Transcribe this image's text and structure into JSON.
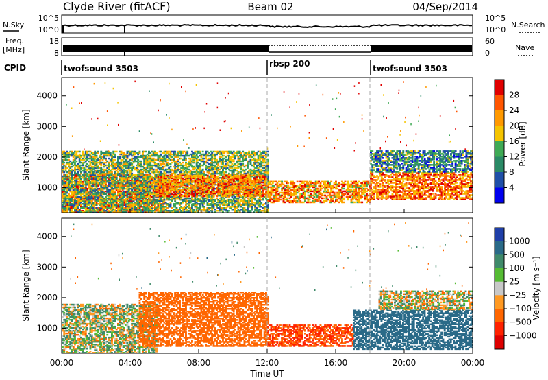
{
  "header": {
    "station": "Clyde River (fitACF)",
    "beam": "Beam 02",
    "date": "04/Sep/2014"
  },
  "top_panel": {
    "left_label": "N.Sky",
    "right_label": "N.Search",
    "left_ticks": [
      "10^5",
      "10^0"
    ],
    "right_ticks": [
      "10^5",
      "10^0"
    ]
  },
  "freq_panel": {
    "left_label_1": "Freq.",
    "left_label_2": "[MHz]",
    "right_label": "Nave",
    "left_ticks": [
      "18",
      "8"
    ],
    "right_ticks": [
      "60",
      "0"
    ]
  },
  "cpid": {
    "label": "CPID",
    "segments": [
      {
        "name": "twofsound 3503",
        "start_h": 0,
        "end_h": 12
      },
      {
        "name": "rbsp 200",
        "start_h": 12,
        "end_h": 18
      },
      {
        "name": "twofsound 3503",
        "start_h": 18,
        "end_h": 24
      }
    ]
  },
  "power_colorbar": {
    "label": "Power [dB]",
    "ticks": [
      "28",
      "24",
      "20",
      "16",
      "12",
      "8",
      "4"
    ],
    "colors": [
      "#e00000",
      "#ff5500",
      "#ff9900",
      "#f5c400",
      "#3faa55",
      "#2a8a66",
      "#1f4fa8",
      "#0000ee"
    ]
  },
  "velocity_colorbar": {
    "label": "Velocity [m s⁻¹]",
    "ticks": [
      "1000",
      "500",
      "100",
      "25",
      "−25",
      "−100",
      "−500",
      "−1000"
    ],
    "colors": [
      "#1f3fa8",
      "#2a6a88",
      "#3f8a6a",
      "#55bb33",
      "#c8c8c8",
      "#ff9922",
      "#ff6600",
      "#ff2200",
      "#dd0000"
    ]
  },
  "chart_data": {
    "type": "heatmap",
    "title": "Clyde River (fitACF)  Beam 02  04/Sep/2014",
    "xlabel": "Time UT",
    "ylabel": "Slant Range [km]",
    "xlim": [
      0,
      24
    ],
    "ylim": [
      180,
      4600
    ],
    "x_ticks": [
      "00:00",
      "04:00",
      "08:00",
      "12:00",
      "16:00",
      "20:00",
      "00:00"
    ],
    "y_ticks": [
      1000,
      2000,
      3000,
      4000
    ],
    "panels": [
      {
        "name": "Power [dB]",
        "regions": [
          {
            "t0": 0.0,
            "t1": 6.0,
            "r0": 180,
            "r1": 1400,
            "value": 24
          },
          {
            "t0": 0.0,
            "t1": 12.0,
            "r0": 180,
            "r1": 2200,
            "value": 12
          },
          {
            "t0": 5.5,
            "t1": 12.0,
            "r0": 700,
            "r1": 1400,
            "value": 22
          },
          {
            "t0": 12.0,
            "t1": 18.0,
            "r0": 500,
            "r1": 1200,
            "value": 20
          },
          {
            "t0": 18.0,
            "t1": 24.0,
            "r0": 600,
            "r1": 1500,
            "value": 22
          },
          {
            "t0": 18.0,
            "t1": 24.0,
            "r0": 1500,
            "r1": 2200,
            "value": 8
          }
        ]
      },
      {
        "name": "Velocity [m s⁻¹]",
        "regions": [
          {
            "t0": 0.0,
            "t1": 5.5,
            "r0": 180,
            "r1": 1800,
            "value": 25
          },
          {
            "t0": 4.5,
            "t1": 12.0,
            "r0": 400,
            "r1": 2200,
            "value": -300
          },
          {
            "t0": 12.0,
            "t1": 17.0,
            "r0": 400,
            "r1": 1100,
            "value": -500
          },
          {
            "t0": 17.0,
            "t1": 24.0,
            "r0": 300,
            "r1": 1600,
            "value": 400
          },
          {
            "t0": 18.5,
            "t1": 24.0,
            "r0": 1600,
            "r1": 2200,
            "value": 0
          }
        ]
      }
    ]
  }
}
